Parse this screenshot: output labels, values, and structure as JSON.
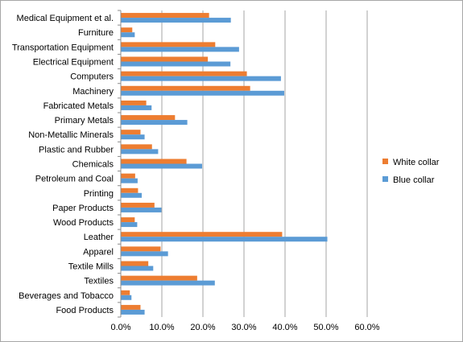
{
  "chart_data": {
    "type": "bar",
    "orientation": "horizontal",
    "title": "",
    "xlabel": "",
    "ylabel": "",
    "categories": [
      "Medical Equipment et al.",
      "Furniture",
      "Transportation Equipment",
      "Electrical Equipment",
      "Computers",
      "Machinery",
      "Fabricated Metals",
      "Primary Metals",
      "Non-Metallic Minerals",
      "Plastic and Rubber",
      "Chemicals",
      "Petroleum and Coal",
      "Printing",
      "Paper Products",
      "Wood Products",
      "Leather",
      "Apparel",
      "Textile Mills",
      "Textiles",
      "Beverages and Tobacco",
      "Food Products"
    ],
    "series": [
      {
        "name": "White collar",
        "color": "#ed7d31",
        "values": [
          21.5,
          2.8,
          23.0,
          21.2,
          30.7,
          31.5,
          6.2,
          13.2,
          4.8,
          7.6,
          16.0,
          3.5,
          4.2,
          8.2,
          3.4,
          39.3,
          9.7,
          6.7,
          18.6,
          2.2,
          4.8
        ]
      },
      {
        "name": "Blue collar",
        "color": "#5b9bd5",
        "values": [
          26.8,
          3.4,
          28.8,
          26.7,
          39.0,
          39.8,
          7.5,
          16.2,
          5.8,
          9.1,
          19.8,
          4.1,
          5.1,
          9.9,
          4.0,
          50.3,
          11.5,
          7.9,
          22.9,
          2.6,
          5.8
        ]
      }
    ],
    "x_ticks": [
      "0.0%",
      "10.0%",
      "20.0%",
      "30.0%",
      "40.0%",
      "50.0%",
      "60.0%"
    ],
    "xlim": [
      0,
      60
    ],
    "grid": true,
    "legend_position": "right"
  }
}
